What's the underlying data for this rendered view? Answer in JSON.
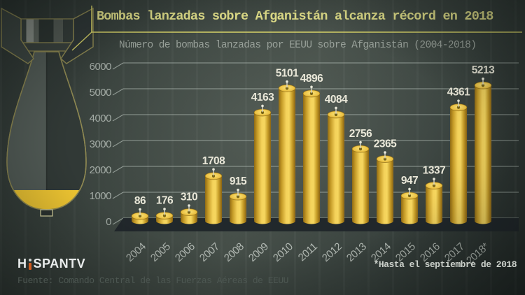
{
  "header": {
    "title": "Bombas lanzadas sobre Afganistán alcanza récord en 2018",
    "subtitle": "Número de bombas lanzadas por EEUU sobre Afganistán (2004-2018)"
  },
  "chart_data": {
    "type": "bar",
    "title": "Bombas lanzadas sobre Afganistán alcanza récord en 2018",
    "subtitle": "Número de bombas lanzadas por EEUU sobre Afganistán (2004-2018)",
    "categories": [
      "2004",
      "2005",
      "2006",
      "2007",
      "2008",
      "2009",
      "2010",
      "2011",
      "2012",
      "2013",
      "2014",
      "2015",
      "2016",
      "2017",
      "2018*"
    ],
    "values": [
      86,
      176,
      310,
      1708,
      915,
      4163,
      5101,
      4896,
      4084,
      2756,
      2365,
      947,
      1337,
      4361,
      5213
    ],
    "yticks": [
      0,
      1000,
      2000,
      3000,
      4000,
      5000,
      6000
    ],
    "ylim": [
      0,
      6000
    ],
    "xlabel": "",
    "ylabel": "",
    "grid": true,
    "legend": "none",
    "bar_color": "#f2c94c",
    "footnote": "*Hasta el septiembre de 2018"
  },
  "footer": {
    "footnote": "*Hasta el septiembre de 2018",
    "source": "Fuente: Comando Central de las Fuerzas Aéreas de EEUU",
    "logo_h": "H",
    "logo_rest": "SPANTV"
  },
  "colors": {
    "accent_yellow": "#d8d368",
    "title_yellow": "#e6e48c",
    "bar_gold": "#f2c94c",
    "background": "#38413d",
    "logo_orange": "#d05a1e"
  }
}
